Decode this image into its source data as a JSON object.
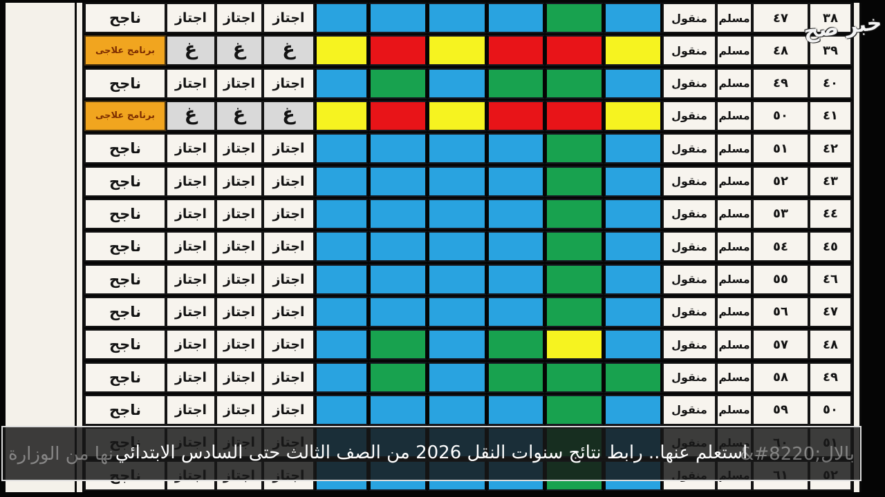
{
  "palette": {
    "blue": "#29a3e0",
    "green": "#18a24f",
    "yellow": "#f6f320",
    "red": "#e81418",
    "orange_remedial": "#f1a51f",
    "gray_absent": "#d9d9d9",
    "paper": "#f7f4ee"
  },
  "watermark": {
    "text": "خبر صح"
  },
  "caption": {
    "text": "استعلم عنها.. رابط نتائج سنوات النقل 2026 من الصف الثالث حتى السادس الابتدائي",
    "ghost_left": "نها من الوزارة",
    "ghost_right": "&#8220;بالال"
  },
  "table": {
    "legend": {
      "pass_label": "اجتاز",
      "absent_label": "غ",
      "success_label": "ناجح",
      "remedial_label": "برنامج علاجى",
      "religion_label": "مسلم",
      "status_label": "منقول"
    },
    "rows": [
      {
        "serial": "٣٨",
        "seat": "٤٧",
        "religion": "مسلم",
        "status": "منقول",
        "subjects_ltr": [
          "blue",
          "blue",
          "blue",
          "blue",
          "green",
          "blue"
        ],
        "pass": [
          "اجتاز",
          "اجتاز",
          "اجتاز"
        ],
        "result": "ناجح",
        "result_type": "pass"
      },
      {
        "serial": "٣٩",
        "seat": "٤٨",
        "religion": "مسلم",
        "status": "منقول",
        "subjects_ltr": [
          "yellow",
          "red",
          "yellow",
          "red",
          "red",
          "yellow"
        ],
        "pass": [
          "غ",
          "غ",
          "غ"
        ],
        "result": "برنامج علاجى",
        "result_type": "remedial"
      },
      {
        "serial": "٤٠",
        "seat": "٤٩",
        "religion": "مسلم",
        "status": "منقول",
        "subjects_ltr": [
          "blue",
          "green",
          "blue",
          "green",
          "green",
          "blue"
        ],
        "pass": [
          "اجتاز",
          "اجتاز",
          "اجتاز"
        ],
        "result": "ناجح",
        "result_type": "pass"
      },
      {
        "serial": "٤١",
        "seat": "٥٠",
        "religion": "مسلم",
        "status": "منقول",
        "subjects_ltr": [
          "yellow",
          "red",
          "yellow",
          "red",
          "red",
          "yellow"
        ],
        "pass": [
          "غ",
          "غ",
          "غ"
        ],
        "result": "برنامج علاجى",
        "result_type": "remedial"
      },
      {
        "serial": "٤٢",
        "seat": "٥١",
        "religion": "مسلم",
        "status": "منقول",
        "subjects_ltr": [
          "blue",
          "blue",
          "blue",
          "blue",
          "green",
          "blue"
        ],
        "pass": [
          "اجتاز",
          "اجتاز",
          "اجتاز"
        ],
        "result": "ناجح",
        "result_type": "pass"
      },
      {
        "serial": "٤٣",
        "seat": "٥٢",
        "religion": "مسلم",
        "status": "منقول",
        "subjects_ltr": [
          "blue",
          "blue",
          "blue",
          "blue",
          "green",
          "blue"
        ],
        "pass": [
          "اجتاز",
          "اجتاز",
          "اجتاز"
        ],
        "result": "ناجح",
        "result_type": "pass"
      },
      {
        "serial": "٤٤",
        "seat": "٥٣",
        "religion": "مسلم",
        "status": "منقول",
        "subjects_ltr": [
          "blue",
          "blue",
          "blue",
          "blue",
          "green",
          "blue"
        ],
        "pass": [
          "اجتاز",
          "اجتاز",
          "اجتاز"
        ],
        "result": "ناجح",
        "result_type": "pass"
      },
      {
        "serial": "٤٥",
        "seat": "٥٤",
        "religion": "مسلم",
        "status": "منقول",
        "subjects_ltr": [
          "blue",
          "blue",
          "blue",
          "blue",
          "green",
          "blue"
        ],
        "pass": [
          "اجتاز",
          "اجتاز",
          "اجتاز"
        ],
        "result": "ناجح",
        "result_type": "pass"
      },
      {
        "serial": "٤٦",
        "seat": "٥٥",
        "religion": "مسلم",
        "status": "منقول",
        "subjects_ltr": [
          "blue",
          "blue",
          "blue",
          "blue",
          "green",
          "blue"
        ],
        "pass": [
          "اجتاز",
          "اجتاز",
          "اجتاز"
        ],
        "result": "ناجح",
        "result_type": "pass"
      },
      {
        "serial": "٤٧",
        "seat": "٥٦",
        "religion": "مسلم",
        "status": "منقول",
        "subjects_ltr": [
          "blue",
          "blue",
          "blue",
          "blue",
          "green",
          "blue"
        ],
        "pass": [
          "اجتاز",
          "اجتاز",
          "اجتاز"
        ],
        "result": "ناجح",
        "result_type": "pass"
      },
      {
        "serial": "٤٨",
        "seat": "٥٧",
        "religion": "مسلم",
        "status": "منقول",
        "subjects_ltr": [
          "blue",
          "green",
          "blue",
          "green",
          "yellow",
          "blue"
        ],
        "pass": [
          "اجتاز",
          "اجتاز",
          "اجتاز"
        ],
        "result": "ناجح",
        "result_type": "pass"
      },
      {
        "serial": "٤٩",
        "seat": "٥٨",
        "religion": "مسلم",
        "status": "منقول",
        "subjects_ltr": [
          "blue",
          "green",
          "blue",
          "green",
          "green",
          "green"
        ],
        "pass": [
          "اجتاز",
          "اجتاز",
          "اجتاز"
        ],
        "result": "ناجح",
        "result_type": "pass"
      },
      {
        "serial": "٥٠",
        "seat": "٥٩",
        "religion": "مسلم",
        "status": "منقول",
        "subjects_ltr": [
          "blue",
          "blue",
          "blue",
          "blue",
          "green",
          "blue"
        ],
        "pass": [
          "اجتاز",
          "اجتاز",
          "اجتاز"
        ],
        "result": "ناجح",
        "result_type": "pass"
      },
      {
        "serial": "٥١",
        "seat": "٦٠",
        "religion": "مسلم",
        "status": "منقول",
        "subjects_ltr": [
          "blue",
          "blue",
          "blue",
          "blue",
          "green",
          "blue"
        ],
        "pass": [
          "اجتاز",
          "اجتاز",
          "اجتاز"
        ],
        "result": "ناجح",
        "result_type": "pass"
      },
      {
        "serial": "٥٢",
        "seat": "٦١",
        "religion": "مسلم",
        "status": "منقول",
        "subjects_ltr": [
          "blue",
          "blue",
          "blue",
          "blue",
          "green",
          "blue"
        ],
        "pass": [
          "اجتاز",
          "اجتاز",
          "اجتاز"
        ],
        "result": "ناجح",
        "result_type": "pass"
      }
    ]
  }
}
